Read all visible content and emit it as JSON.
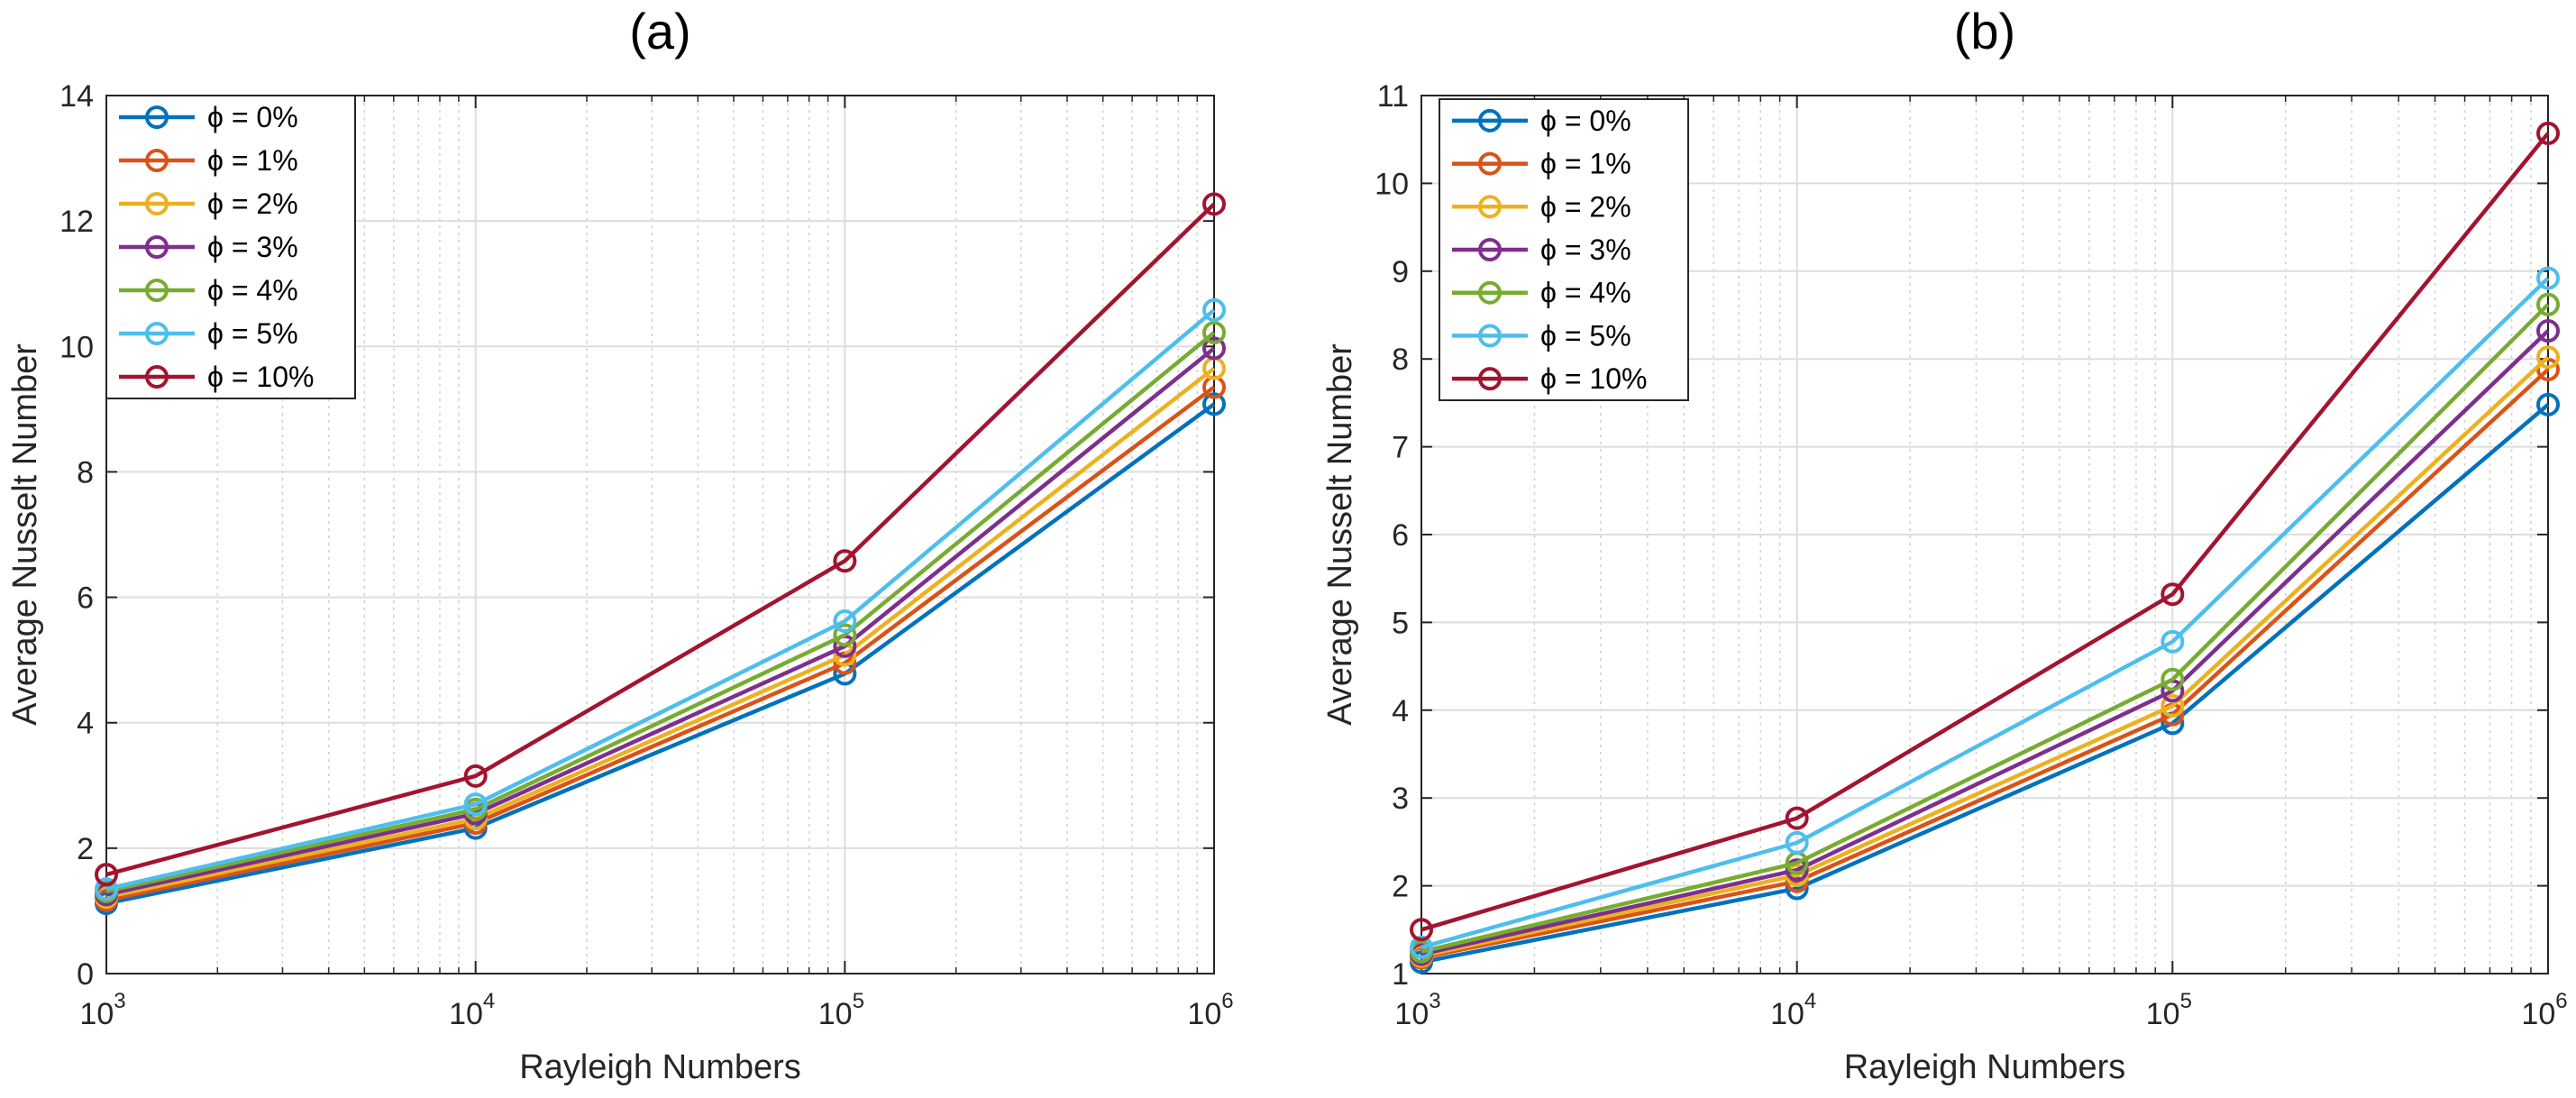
{
  "chart_data": [
    {
      "type": "line",
      "title": "(a)",
      "xlabel": "Rayleigh Numbers",
      "ylabel": "Average Nusselt Number",
      "xscale": "log",
      "xlim": [
        1000,
        1000000
      ],
      "ylim": [
        0,
        14
      ],
      "grid": true,
      "legend_position": "top-left",
      "x": [
        1000,
        10000,
        100000,
        1000000
      ],
      "x_tick_labels": [
        {
          "base": "10",
          "exp": "3"
        },
        {
          "base": "10",
          "exp": "4"
        },
        {
          "base": "10",
          "exp": "5"
        },
        {
          "base": "10",
          "exp": "6"
        }
      ],
      "y_ticks": [
        0,
        2,
        4,
        6,
        8,
        10,
        12,
        14
      ],
      "series": [
        {
          "name": "ϕ = 0%",
          "color": "#0072BD",
          "values": [
            1.12,
            2.32,
            4.78,
            9.08
          ]
        },
        {
          "name": "ϕ = 1%",
          "color": "#D95319",
          "values": [
            1.17,
            2.4,
            4.95,
            9.35
          ]
        },
        {
          "name": "ϕ = 2%",
          "color": "#EDB120",
          "values": [
            1.22,
            2.47,
            5.08,
            9.65
          ]
        },
        {
          "name": "ϕ = 3%",
          "color": "#7E2F8E",
          "values": [
            1.26,
            2.55,
            5.22,
            9.97
          ]
        },
        {
          "name": "ϕ = 4%",
          "color": "#77AC30",
          "values": [
            1.31,
            2.62,
            5.4,
            10.22
          ]
        },
        {
          "name": "ϕ = 5%",
          "color": "#4DBEEE",
          "values": [
            1.35,
            2.7,
            5.62,
            10.58
          ]
        },
        {
          "name": "ϕ = 10%",
          "color": "#A2142F",
          "values": [
            1.58,
            3.15,
            6.58,
            12.27
          ]
        }
      ]
    },
    {
      "type": "line",
      "title": "(b)",
      "xlabel": "Rayleigh Numbers",
      "ylabel": "Average Nusselt Number",
      "xscale": "log",
      "xlim": [
        1000,
        1000000
      ],
      "ylim": [
        1,
        11
      ],
      "grid": true,
      "legend_position": "top-left",
      "x": [
        1000,
        10000,
        100000,
        1000000
      ],
      "x_tick_labels": [
        {
          "base": "10",
          "exp": "3"
        },
        {
          "base": "10",
          "exp": "4"
        },
        {
          "base": "10",
          "exp": "5"
        },
        {
          "base": "10",
          "exp": "6"
        }
      ],
      "y_ticks": [
        1,
        2,
        3,
        4,
        5,
        6,
        7,
        8,
        9,
        10,
        11
      ],
      "series": [
        {
          "name": "ϕ = 0%",
          "color": "#0072BD",
          "values": [
            1.13,
            1.97,
            3.85,
            7.48
          ]
        },
        {
          "name": "ϕ = 1%",
          "color": "#D95319",
          "values": [
            1.18,
            2.05,
            3.95,
            7.88
          ]
        },
        {
          "name": "ϕ = 2%",
          "color": "#EDB120",
          "values": [
            1.2,
            2.12,
            4.05,
            8.02
          ]
        },
        {
          "name": "ϕ = 3%",
          "color": "#7E2F8E",
          "values": [
            1.22,
            2.18,
            4.22,
            8.32
          ]
        },
        {
          "name": "ϕ = 4%",
          "color": "#77AC30",
          "values": [
            1.25,
            2.26,
            4.35,
            8.62
          ]
        },
        {
          "name": "ϕ = 5%",
          "color": "#4DBEEE",
          "values": [
            1.3,
            2.49,
            4.78,
            8.92
          ]
        },
        {
          "name": "ϕ = 10%",
          "color": "#A2142F",
          "values": [
            1.5,
            2.77,
            5.32,
            10.57
          ]
        }
      ]
    }
  ]
}
